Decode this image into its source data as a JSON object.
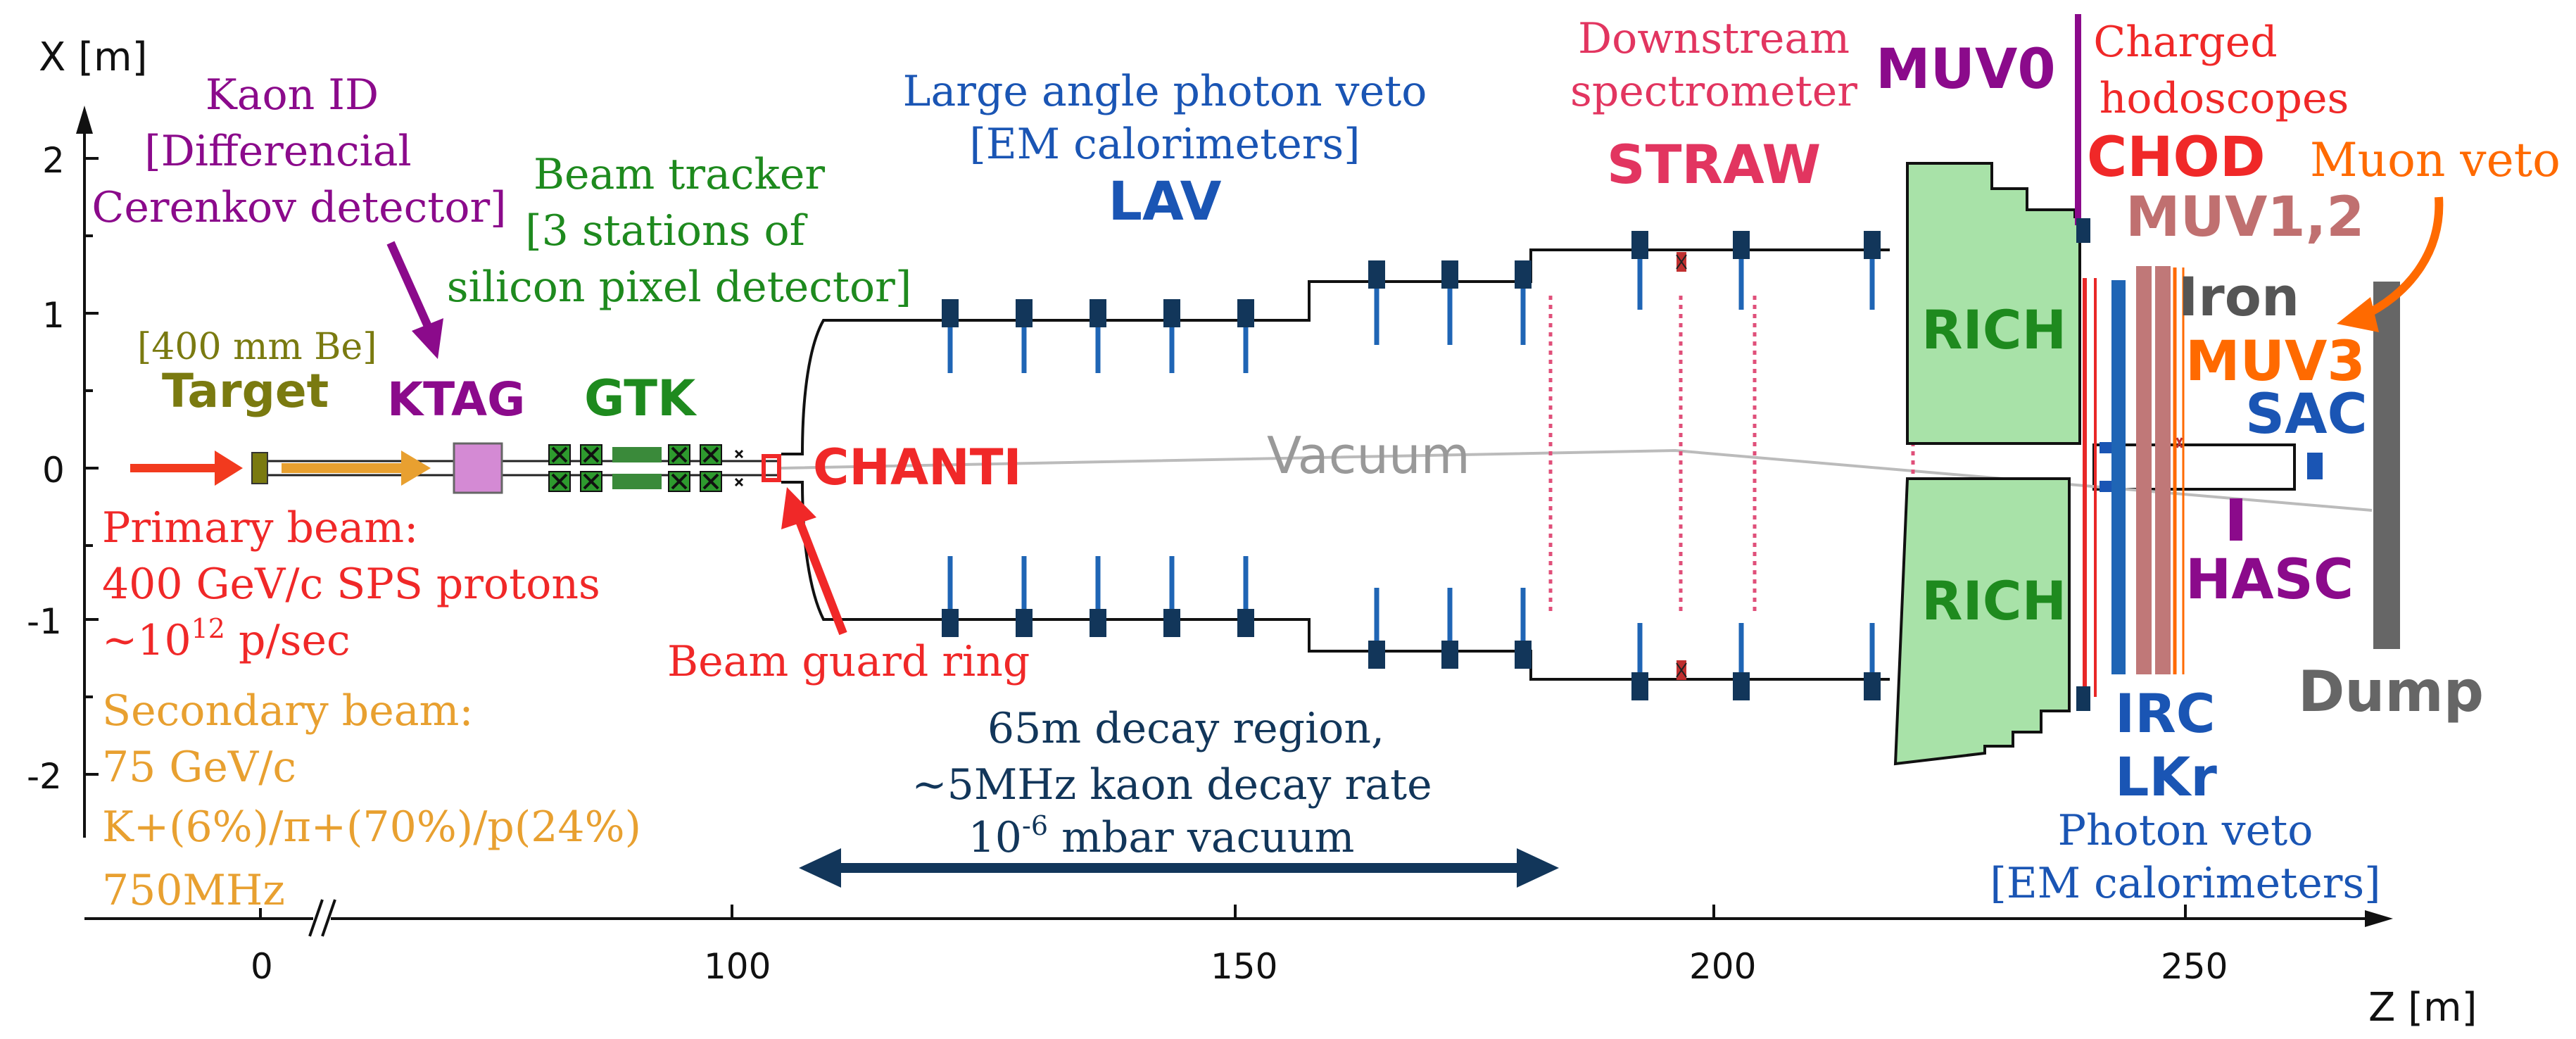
{
  "axes": {
    "x_label": "X [m]",
    "z_label": "Z [m]",
    "x_ticks": [
      "2",
      "1",
      "0",
      "-1",
      "-2"
    ],
    "z_ticks": [
      "0",
      "100",
      "150",
      "200",
      "250"
    ]
  },
  "labels": {
    "kaon_id_1": "Kaon ID",
    "kaon_id_2": "[Differencial",
    "kaon_id_3": "Cerenkov detector]",
    "beam_tracker_1": "Beam tracker",
    "beam_tracker_2": "[3 stations of",
    "beam_tracker_3": "silicon pixel detector]",
    "target_spec": "[400 mm Be]",
    "target": "Target",
    "ktag": "KTAG",
    "gtk": "GTK",
    "chanti": "CHANTI",
    "beam_guard": "Beam guard ring",
    "lav_desc_1": "Large angle photon veto",
    "lav_desc_2": "[EM calorimeters]",
    "lav": "LAV",
    "vacuum": "Vacuum",
    "ds_spec_1": "Downstream",
    "ds_spec_2": "spectrometer",
    "straw": "STRAW",
    "muv0": "MUV0",
    "charged_1": "Charged",
    "charged_2": "hodoscopes",
    "chod": "CHOD",
    "muv12": "MUV1,2",
    "muon_veto": "Muon veto",
    "iron": "Iron",
    "muv3": "MUV3",
    "sac": "SAC",
    "rich_top": "RICH",
    "rich_bottom": "RICH",
    "hasc": "HASC",
    "dump": "Dump",
    "irc": "IRC",
    "lkr": "LKr",
    "photon_veto_1": "Photon veto",
    "photon_veto_2": "[EM calorimeters]"
  },
  "beam_info": {
    "primary_1": "Primary beam:",
    "primary_2": "400 GeV/c SPS protons",
    "primary_3_pre": "~10",
    "primary_3_sup": "12",
    "primary_3_post": " p/sec",
    "secondary_1": "Secondary beam:",
    "secondary_2": "75 GeV/c",
    "secondary_3": "K+(6%)/π+(70%)/p(24%)",
    "secondary_4": "750MHz"
  },
  "decay_region": {
    "line_1": "65m decay region,",
    "line_2": "~5MHz kaon decay rate",
    "line_3_pre": "10",
    "line_3_sup": "-6",
    "line_3_post": " mbar vacuum"
  },
  "colors": {
    "purple": "#8b0a8b",
    "green": "#1e8a1e",
    "olive": "#7a7a10",
    "red": "#f02828",
    "blue": "#1a55b4",
    "crimson": "#e23560",
    "orange": "#ff6a00",
    "beam_orange": "#e8a030",
    "rose": "#c07070",
    "gray": "#555555",
    "navy": "#12365a",
    "rich_green": "#a8e2a8"
  }
}
